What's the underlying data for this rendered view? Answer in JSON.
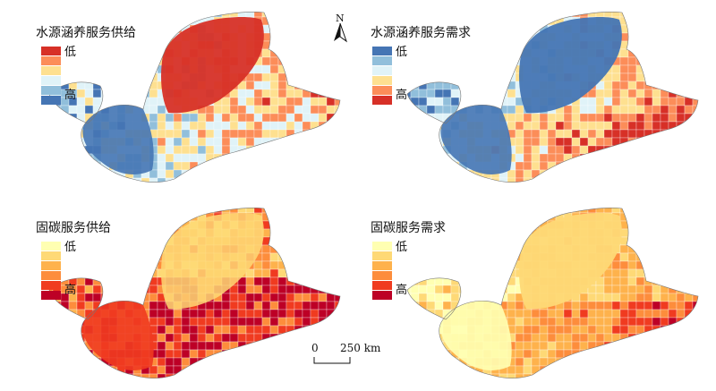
{
  "panels": [
    {
      "id": "water-supply",
      "title": "水源涵养服务供给",
      "legend_low": "低",
      "legend_high": "高",
      "ramp": [
        "#d73027",
        "#fc8d59",
        "#fee090",
        "#e0f3f8",
        "#91bfdb",
        "#4575b4"
      ]
    },
    {
      "id": "water-demand",
      "title": "水源涵养服务需求",
      "legend_low": "低",
      "legend_high": "高",
      "ramp": [
        "#4575b4",
        "#91bfdb",
        "#e0f3f8",
        "#fee090",
        "#fc8d59",
        "#d73027"
      ]
    },
    {
      "id": "carbon-supply",
      "title": "固碳服务供给",
      "legend_low": "低",
      "legend_high": "高",
      "ramp": [
        "#ffffb2",
        "#fed976",
        "#feb24c",
        "#fd8d3c",
        "#f03b20",
        "#bd0026"
      ]
    },
    {
      "id": "carbon-demand",
      "title": "固碳服务需求",
      "legend_low": "低",
      "legend_high": "高",
      "ramp": [
        "#ffffb2",
        "#fed976",
        "#feb24c",
        "#fd8d3c",
        "#f03b20",
        "#bd0026"
      ]
    }
  ],
  "north_arrow": {
    "label": "N"
  },
  "scale_bar": {
    "zero": "0",
    "distance": "250 km"
  }
}
